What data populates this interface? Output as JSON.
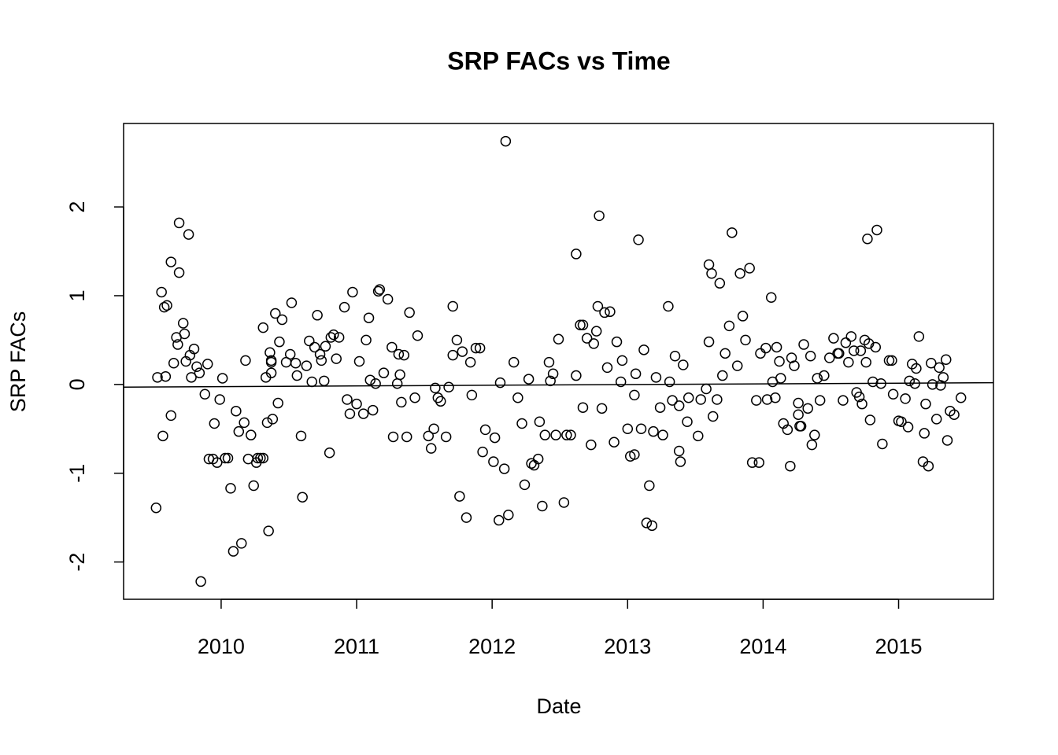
{
  "chart_data": {
    "type": "scatter",
    "title": "SRP FACs vs Time",
    "x_label": "Date",
    "y_label": "SRP FACs",
    "color": "#000000",
    "xlim": [
      2009.28,
      2015.7
    ],
    "ylim": [
      -2.42,
      2.94
    ],
    "xticks": [
      2010,
      2011,
      2012,
      2013,
      2014,
      2015
    ],
    "yticks": [
      -2,
      -1,
      0,
      1,
      2
    ],
    "trend_line": {
      "x": [
        2009.28,
        2015.7
      ],
      "y": [
        -0.03,
        0.02
      ]
    },
    "x": [
      2009.52,
      2009.53,
      2009.56,
      2009.58,
      2009.57,
      2009.59,
      2009.6,
      2009.63,
      2009.63,
      2009.65,
      2009.67,
      2009.68,
      2009.69,
      2009.69,
      2009.72,
      2009.73,
      2009.74,
      2009.76,
      2009.77,
      2009.78,
      2009.8,
      2009.82,
      2009.84,
      2009.85,
      2009.88,
      2009.9,
      2009.91,
      2009.94,
      2009.95,
      2009.97,
      2009.99,
      2010.01,
      2010.03,
      2010.05,
      2010.07,
      2010.09,
      2010.11,
      2010.13,
      2010.15,
      2010.17,
      2010.18,
      2010.2,
      2010.22,
      2010.24,
      2010.26,
      2010.27,
      2010.29,
      2010.31,
      2010.31,
      2010.33,
      2010.34,
      2010.35,
      2010.36,
      2010.37,
      2010.37,
      2010.37,
      2010.38,
      2010.4,
      2010.42,
      2010.43,
      2010.45,
      2010.48,
      2010.51,
      2010.52,
      2010.55,
      2010.56,
      2010.59,
      2010.6,
      2010.63,
      2010.65,
      2010.67,
      2010.69,
      2010.71,
      2010.73,
      2010.74,
      2010.76,
      2010.77,
      2010.8,
      2010.81,
      2010.83,
      2010.85,
      2010.87,
      2010.91,
      2010.93,
      2010.95,
      2010.97,
      2011.0,
      2011.02,
      2011.05,
      2011.07,
      2011.09,
      2011.1,
      2011.12,
      2011.14,
      2011.16,
      2011.17,
      2011.2,
      2011.23,
      2011.26,
      2011.27,
      2011.3,
      2011.31,
      2011.32,
      2011.33,
      2011.35,
      2011.37,
      2011.39,
      2011.43,
      2011.45,
      2011.53,
      2011.55,
      2011.57,
      2011.58,
      2011.6,
      2011.62,
      2011.66,
      2011.68,
      2011.71,
      2011.71,
      2011.74,
      2011.76,
      2011.78,
      2011.81,
      2011.84,
      2011.85,
      2011.88,
      2011.91,
      2011.93,
      2011.95,
      2012.01,
      2012.02,
      2012.05,
      2012.06,
      2012.09,
      2012.1,
      2012.12,
      2012.16,
      2012.19,
      2012.22,
      2012.24,
      2012.27,
      2012.29,
      2012.31,
      2012.34,
      2012.35,
      2012.37,
      2012.39,
      2012.42,
      2012.43,
      2012.45,
      2012.47,
      2012.49,
      2012.53,
      2012.55,
      2012.58,
      2012.62,
      2012.62,
      2012.65,
      2012.67,
      2012.67,
      2012.7,
      2012.73,
      2012.75,
      2012.77,
      2012.78,
      2012.79,
      2012.81,
      2012.83,
      2012.85,
      2012.87,
      2012.9,
      2012.92,
      2012.95,
      2012.96,
      2013.0,
      2013.02,
      2013.05,
      2013.05,
      2013.06,
      2013.08,
      2013.1,
      2013.12,
      2013.14,
      2013.16,
      2013.18,
      2013.19,
      2013.21,
      2013.24,
      2013.26,
      2013.3,
      2013.31,
      2013.33,
      2013.35,
      2013.38,
      2013.38,
      2013.39,
      2013.41,
      2013.44,
      2013.45,
      2013.52,
      2013.54,
      2013.58,
      2013.6,
      2013.6,
      2013.62,
      2013.63,
      2013.66,
      2013.68,
      2013.7,
      2013.72,
      2013.75,
      2013.77,
      2013.81,
      2013.83,
      2013.85,
      2013.87,
      2013.9,
      2013.92,
      2013.95,
      2013.97,
      2013.98,
      2014.02,
      2014.03,
      2014.06,
      2014.07,
      2014.09,
      2014.1,
      2014.12,
      2014.13,
      2014.15,
      2014.18,
      2014.2,
      2014.21,
      2014.23,
      2014.26,
      2014.26,
      2014.27,
      2014.28,
      2014.3,
      2014.33,
      2014.35,
      2014.36,
      2014.38,
      2014.4,
      2014.42,
      2014.45,
      2014.49,
      2014.52,
      2014.55,
      2014.56,
      2014.59,
      2014.61,
      2014.63,
      2014.65,
      2014.67,
      2014.69,
      2014.71,
      2014.72,
      2014.73,
      2014.75,
      2014.76,
      2014.77,
      2014.78,
      2014.79,
      2014.81,
      2014.83,
      2014.84,
      2014.87,
      2014.88,
      2014.93,
      2014.95,
      2014.96,
      2015.0,
      2015.02,
      2015.05,
      2015.07,
      2015.08,
      2015.1,
      2015.12,
      2015.13,
      2015.15,
      2015.18,
      2015.19,
      2015.2,
      2015.22,
      2015.24,
      2015.25,
      2015.28,
      2015.3,
      2015.31,
      2015.33,
      2015.35,
      2015.36,
      2015.38,
      2015.41,
      2015.46
    ],
    "values": [
      -1.39,
      0.08,
      1.04,
      0.87,
      -0.58,
      0.09,
      0.89,
      1.38,
      -0.35,
      0.24,
      0.53,
      0.45,
      1.26,
      1.82,
      0.69,
      0.57,
      0.26,
      1.69,
      0.33,
      0.08,
      0.4,
      0.2,
      0.13,
      -2.22,
      -0.11,
      0.23,
      -0.84,
      -0.84,
      -0.44,
      -0.88,
      -0.17,
      0.07,
      -0.83,
      -0.83,
      -1.17,
      -1.88,
      -0.3,
      -0.53,
      -1.79,
      -0.43,
      0.27,
      -0.84,
      -0.57,
      -1.14,
      -0.88,
      -0.83,
      -0.83,
      -0.83,
      0.64,
      0.08,
      -0.43,
      -1.65,
      0.36,
      0.27,
      0.25,
      0.13,
      -0.39,
      0.8,
      -0.21,
      0.48,
      0.73,
      0.25,
      0.34,
      0.92,
      0.24,
      0.1,
      -0.58,
      -1.27,
      0.21,
      0.49,
      0.03,
      0.42,
      0.78,
      0.34,
      0.27,
      0.04,
      0.43,
      -0.77,
      0.53,
      0.56,
      0.29,
      0.53,
      0.87,
      -0.17,
      -0.33,
      1.04,
      -0.22,
      0.26,
      -0.33,
      0.5,
      0.75,
      0.05,
      -0.29,
      0.01,
      1.05,
      1.07,
      0.13,
      0.96,
      0.42,
      -0.59,
      0.01,
      0.34,
      0.11,
      -0.2,
      0.33,
      -0.59,
      0.81,
      -0.15,
      0.55,
      -0.58,
      -0.72,
      -0.5,
      -0.04,
      -0.15,
      -0.19,
      -0.59,
      -0.03,
      0.88,
      0.33,
      0.5,
      -1.26,
      0.37,
      -1.5,
      0.25,
      -0.12,
      0.41,
      0.41,
      -0.76,
      -0.51,
      -0.87,
      -0.6,
      -1.53,
      0.02,
      -0.95,
      2.74,
      -1.47,
      0.25,
      -0.15,
      -0.44,
      -1.13,
      0.06,
      -0.89,
      -0.91,
      -0.84,
      -0.42,
      -1.37,
      -0.57,
      0.25,
      0.04,
      0.12,
      -0.57,
      0.51,
      -1.33,
      -0.57,
      -0.57,
      0.1,
      1.47,
      0.67,
      0.67,
      -0.26,
      0.52,
      -0.68,
      0.46,
      0.6,
      0.88,
      1.9,
      -0.27,
      0.81,
      0.19,
      0.82,
      -0.65,
      0.48,
      0.03,
      0.27,
      -0.5,
      -0.81,
      -0.79,
      -0.12,
      0.12,
      1.63,
      -0.5,
      0.39,
      -1.56,
      -1.14,
      -1.59,
      -0.53,
      0.08,
      -0.26,
      -0.57,
      0.88,
      0.03,
      -0.18,
      0.32,
      -0.24,
      -0.75,
      -0.87,
      0.22,
      -0.42,
      -0.15,
      -0.58,
      -0.17,
      -0.05,
      1.35,
      0.48,
      1.25,
      -0.36,
      -0.17,
      1.14,
      0.1,
      0.35,
      0.66,
      1.71,
      0.21,
      1.25,
      0.77,
      0.5,
      1.31,
      -0.88,
      -0.18,
      -0.88,
      0.35,
      0.41,
      -0.17,
      0.98,
      0.03,
      -0.15,
      0.42,
      0.26,
      0.07,
      -0.44,
      -0.51,
      -0.92,
      0.3,
      0.21,
      -0.21,
      -0.34,
      -0.47,
      -0.47,
      0.45,
      -0.27,
      0.32,
      -0.68,
      -0.57,
      0.07,
      -0.18,
      0.1,
      0.3,
      0.52,
      0.35,
      0.35,
      -0.18,
      0.47,
      0.25,
      0.54,
      0.38,
      -0.09,
      -0.14,
      0.38,
      -0.22,
      0.5,
      0.25,
      1.64,
      0.46,
      -0.4,
      0.03,
      0.42,
      1.74,
      0.01,
      -0.67,
      0.27,
      0.27,
      -0.11,
      -0.41,
      -0.42,
      -0.16,
      -0.48,
      0.04,
      0.23,
      0.01,
      0.18,
      0.54,
      -0.87,
      -0.55,
      -0.22,
      -0.92,
      0.24,
      0,
      -0.39,
      0.19,
      -0.01,
      0.08,
      0.28,
      -0.63,
      -0.3,
      -0.34,
      -0.15
    ]
  }
}
